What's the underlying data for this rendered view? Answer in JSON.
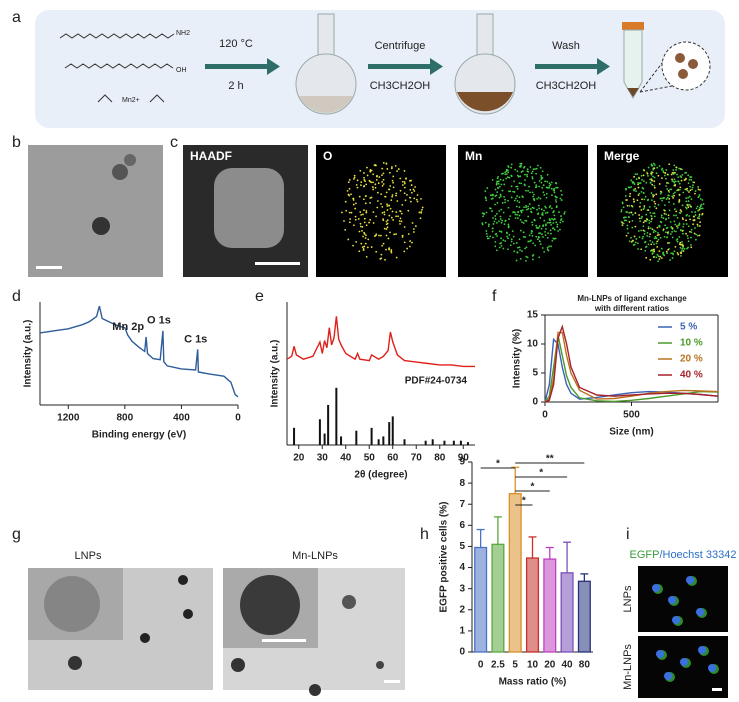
{
  "panel_labels": [
    "a",
    "b",
    "c",
    "d",
    "e",
    "f",
    "g",
    "h",
    "i"
  ],
  "synthesis": {
    "reagents": [
      "NH2",
      "OH",
      "Mn2+"
    ],
    "steps": [
      {
        "top": "120 °C",
        "bottom": "2 h"
      },
      {
        "top": "Centrifuge",
        "bottom": "CH3CH2OH"
      },
      {
        "top": "Wash",
        "bottom": "CH3CH2OH"
      }
    ]
  },
  "mapping": [
    "HAADF",
    "O",
    "Mn",
    "Merge"
  ],
  "tem": [
    "LNPs",
    "Mn-LNPs"
  ],
  "fluorescence": {
    "stain": [
      "EGFP",
      "/Hoechst 33342"
    ],
    "rows": [
      "LNPs",
      "Mn-LNPs"
    ]
  },
  "chart_data": [
    {
      "type": "line",
      "xlabel": "Binding energy (eV)",
      "ylabel": "Intensity (a.u.)",
      "x": [
        1400,
        1300,
        1200,
        1150,
        1100,
        1050,
        1000,
        980,
        960,
        900,
        850,
        800,
        780,
        750,
        700,
        660,
        650,
        640,
        600,
        550,
        531,
        525,
        500,
        400,
        300,
        285,
        280,
        200,
        100,
        50,
        20,
        0
      ],
      "series": [
        {
          "color": "#2e5d9a",
          "values": [
            70,
            72,
            74,
            76,
            78,
            81,
            86,
            96,
            84,
            80,
            77,
            75,
            68,
            62,
            56,
            52,
            66,
            50,
            45,
            44,
            72,
            42,
            38,
            35,
            34,
            54,
            32,
            30,
            28,
            22,
            10,
            8
          ]
        }
      ],
      "annotations": [
        {
          "text": "Mn 2p",
          "x": 650
        },
        {
          "text": "O 1s",
          "x": 531
        },
        {
          "text": "C 1s",
          "x": 285
        }
      ],
      "xlim": [
        1400,
        0
      ],
      "xticks": [
        1200,
        800,
        400,
        0
      ],
      "ylim": [
        0,
        100
      ]
    },
    {
      "type": "line",
      "xlabel": "2θ (degree)",
      "ylabel": "Intensity (a.u.)",
      "annotation": "PDF#24-0734",
      "x": [
        15,
        17,
        18,
        19,
        22,
        26,
        29,
        30,
        31,
        32,
        33,
        34,
        35,
        36,
        37,
        38,
        40,
        44,
        45,
        46,
        50,
        51,
        54,
        56,
        58,
        59,
        60,
        62,
        65,
        70,
        75,
        80,
        85,
        90,
        95
      ],
      "series": [
        {
          "color": "#e0201b",
          "values": [
            60,
            62,
            69,
            63,
            60,
            62,
            72,
            64,
            73,
            68,
            82,
            70,
            75,
            90,
            74,
            70,
            64,
            60,
            64,
            60,
            59,
            63,
            60,
            62,
            66,
            79,
            72,
            63,
            59,
            58,
            57,
            56,
            56,
            55,
            55
          ]
        }
      ],
      "reference": {
        "color": "#111111",
        "x": [
          18,
          29,
          31,
          32.5,
          36,
          38,
          44.5,
          51,
          54,
          56,
          58.5,
          60,
          65,
          74,
          77,
          82,
          86,
          89,
          92
        ],
        "values": [
          12,
          18,
          8,
          28,
          40,
          6,
          10,
          12,
          4,
          6,
          16,
          20,
          4,
          3,
          4,
          3,
          3,
          3,
          2
        ]
      },
      "xlim": [
        15,
        95
      ],
      "xticks": [
        20,
        30,
        40,
        50,
        60,
        70,
        80,
        90
      ],
      "ylim": [
        0,
        100
      ]
    },
    {
      "type": "line",
      "title": [
        "Mn-LNPs of ligand exchange",
        "with different ratios"
      ],
      "xlabel": "Size (nm)",
      "ylabel": "Intensity (%)",
      "x": [
        0,
        25,
        50,
        75,
        100,
        125,
        150,
        200,
        300,
        400,
        500,
        600,
        700,
        800,
        900,
        1000
      ],
      "series": [
        {
          "name": "5 %",
          "color": "#3a62b5",
          "values": [
            0,
            3,
            10.8,
            10,
            6,
            3,
            1.5,
            0.5,
            0.8,
            1.2,
            1.6,
            1.8,
            1.7,
            1.5,
            1.3,
            1.0
          ]
        },
        {
          "name": "10 %",
          "color": "#4a9a2a",
          "values": [
            0,
            1,
            6,
            11.5,
            8,
            4.5,
            2.5,
            0.7,
            0.2,
            0.1,
            0.3,
            0.6,
            1.0,
            1.4,
            1.8,
            1.7
          ]
        },
        {
          "name": "20 %",
          "color": "#b8731e",
          "values": [
            0,
            0.5,
            4,
            12,
            12,
            8,
            5,
            2,
            0.5,
            0.6,
            1.0,
            1.5,
            1.8,
            2.0,
            1.9,
            1.8
          ]
        },
        {
          "name": "40 %",
          "color": "#a8202a",
          "values": [
            0,
            0.3,
            3,
            11,
            13,
            10,
            6,
            2.5,
            1.2,
            1.0,
            1.2,
            1.4,
            1.5,
            1.5,
            1.3,
            1.0
          ]
        }
      ],
      "xlim": [
        0,
        1000
      ],
      "xticks": [
        0,
        500
      ],
      "ylim": [
        0,
        15
      ],
      "yticks": [
        0,
        5,
        10,
        15
      ],
      "legend": "upper right"
    },
    {
      "type": "bar",
      "xlabel": "Mass ratio (%)",
      "ylabel": "EGFP positive cells (%)",
      "categories": [
        "0",
        "2.5",
        "5",
        "10",
        "20",
        "40",
        "80"
      ],
      "values": [
        4.95,
        5.1,
        7.5,
        4.45,
        4.4,
        3.75,
        3.35
      ],
      "errors": [
        0.85,
        1.3,
        1.25,
        1.0,
        0.55,
        1.45,
        0.35
      ],
      "colors": [
        "#4a72c8",
        "#5aa83c",
        "#d9902a",
        "#c8302a",
        "#c040c0",
        "#7a50b8",
        "#27337a"
      ],
      "comparisons": [
        {
          "label": "*",
          "categories": [
            "0",
            "5"
          ]
        },
        {
          "label": "*",
          "categories": [
            "5",
            "10"
          ]
        },
        {
          "label": "*",
          "categories": [
            "5",
            "20"
          ]
        },
        {
          "label": "*",
          "categories": [
            "5",
            "40"
          ]
        },
        {
          "label": "**",
          "categories": [
            "5",
            "80"
          ]
        }
      ],
      "ylim": [
        0,
        9
      ],
      "yticks": [
        0,
        1,
        2,
        3,
        4,
        5,
        6,
        7,
        8,
        9
      ]
    }
  ]
}
